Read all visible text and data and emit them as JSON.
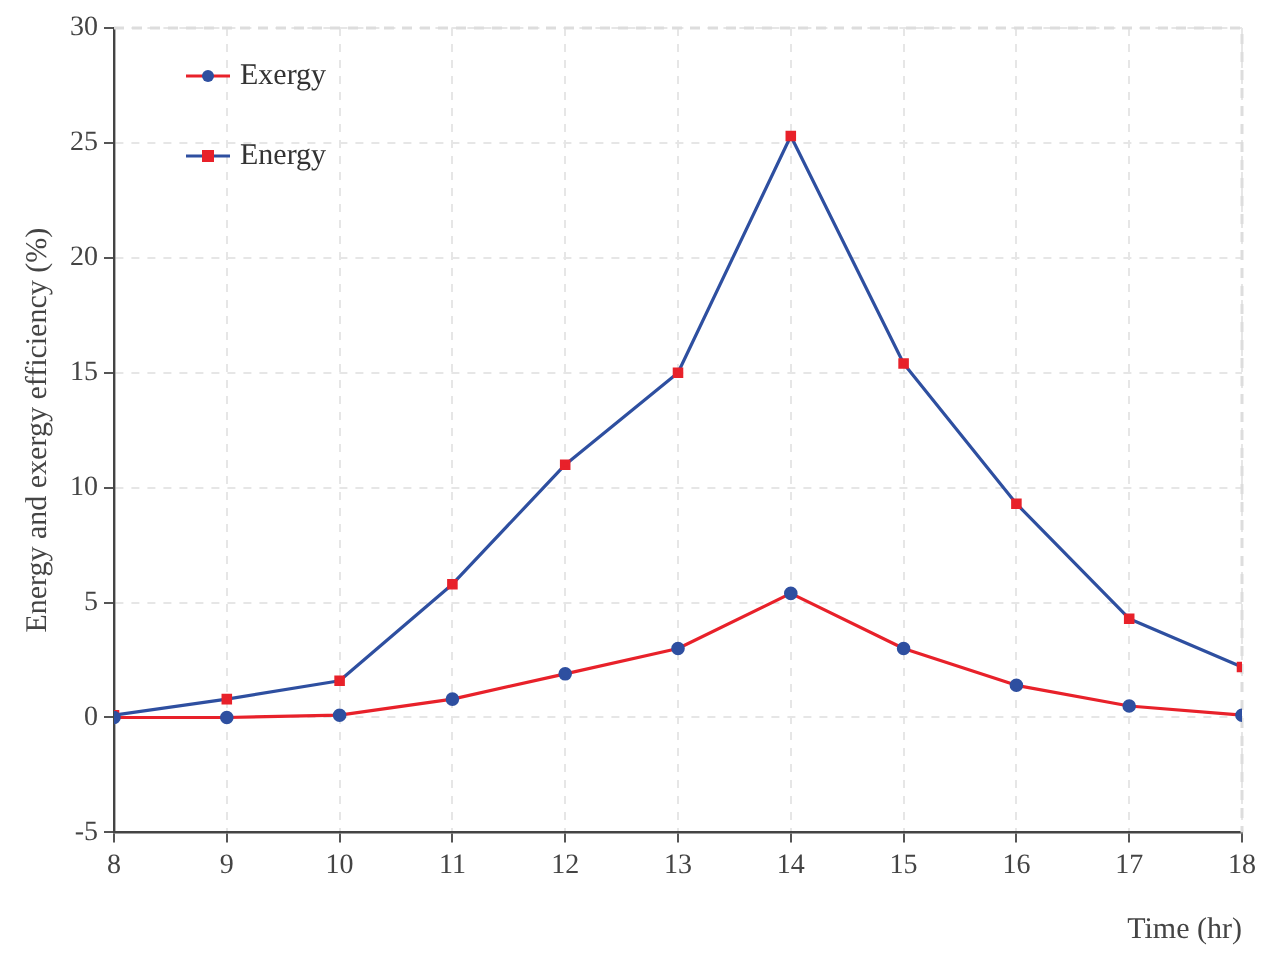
{
  "chart_data": {
    "type": "line",
    "xlabel": "Time (hr)",
    "ylabel": "Energy and exergy efficiency (%)",
    "x": [
      8,
      9,
      10,
      11,
      12,
      13,
      14,
      15,
      16,
      17,
      18
    ],
    "series": [
      {
        "name": "Exergy",
        "color": "#e8212a",
        "marker": "circle",
        "colors": [
          "#2e4fa0",
          "#2e4fa0",
          "#2e4fa0",
          "#2e4fa0",
          "#2e4fa0",
          "#2e4fa0",
          "#2e4fa0",
          "#2e4fa0",
          "#2e4fa0",
          "#2e4fa0",
          "#2e4fa0"
        ],
        "values": [
          0.0,
          0.0,
          0.1,
          0.8,
          1.9,
          3.0,
          5.4,
          3.0,
          1.4,
          0.5,
          0.1
        ]
      },
      {
        "name": "Energy",
        "color": "#2e4fa0",
        "marker": "square",
        "colors": [
          "#e8212a",
          "#e8212a",
          "#e8212a",
          "#e8212a",
          "#e8212a",
          "#e8212a",
          "#e8212a",
          "#e8212a",
          "#e8212a",
          "#e8212a",
          "#e8212a"
        ],
        "values": [
          0.1,
          0.8,
          1.6,
          5.8,
          11.0,
          15.0,
          25.3,
          15.4,
          9.3,
          4.3,
          2.2
        ]
      }
    ],
    "xlim": [
      8,
      18
    ],
    "xticks": [
      8,
      9,
      10,
      11,
      12,
      13,
      14,
      15,
      16,
      17,
      18
    ],
    "ylim": [
      -5,
      30
    ],
    "yticks": [
      -5,
      0,
      5,
      10,
      15,
      20,
      25,
      30
    ],
    "grid": true,
    "legend": "top left",
    "line_style": "solid"
  }
}
